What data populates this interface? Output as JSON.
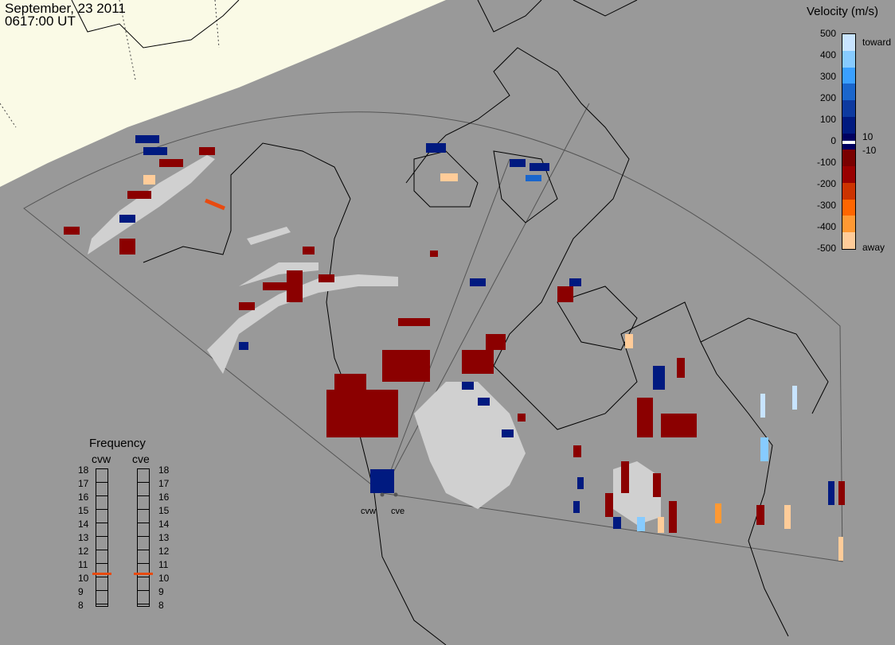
{
  "header": {
    "date": "September, 23 2011",
    "time": "0617:00 UT"
  },
  "velocity_legend": {
    "title": "Velocity (m/s)",
    "ticks": [
      "500",
      "400",
      "300",
      "200",
      "100",
      "0",
      "-100",
      "-200",
      "-300",
      "-400",
      "-500"
    ],
    "toward_label": "toward",
    "away_label": "away",
    "inner_pos_label": "10",
    "inner_neg_label": "-10",
    "colors": [
      "#c8e4ff",
      "#87cbff",
      "#3aa0ff",
      "#1a66cc",
      "#0d3aa0",
      "#001a80",
      "#000060",
      "#7a0000",
      "#990000",
      "#cc3300",
      "#ff6600",
      "#ff9933",
      "#ffcc99"
    ]
  },
  "frequency_legend": {
    "title": "Frequency",
    "left_label": "cvw",
    "right_label": "cve",
    "ticks": [
      "18",
      "17",
      "16",
      "15",
      "14",
      "13",
      "12",
      "11",
      "10",
      "9",
      "8"
    ],
    "cvw_value": 10.8,
    "cve_value": 10.8,
    "marker_color": "#e84a10"
  },
  "stations": [
    {
      "name": "cvw"
    },
    {
      "name": "cve"
    }
  ],
  "colors": {
    "ocean": "#999999",
    "daylight": "#fafae6",
    "fov_line": "#555555",
    "coast": "#000000",
    "ground_scatter": "#d0d0d0"
  }
}
